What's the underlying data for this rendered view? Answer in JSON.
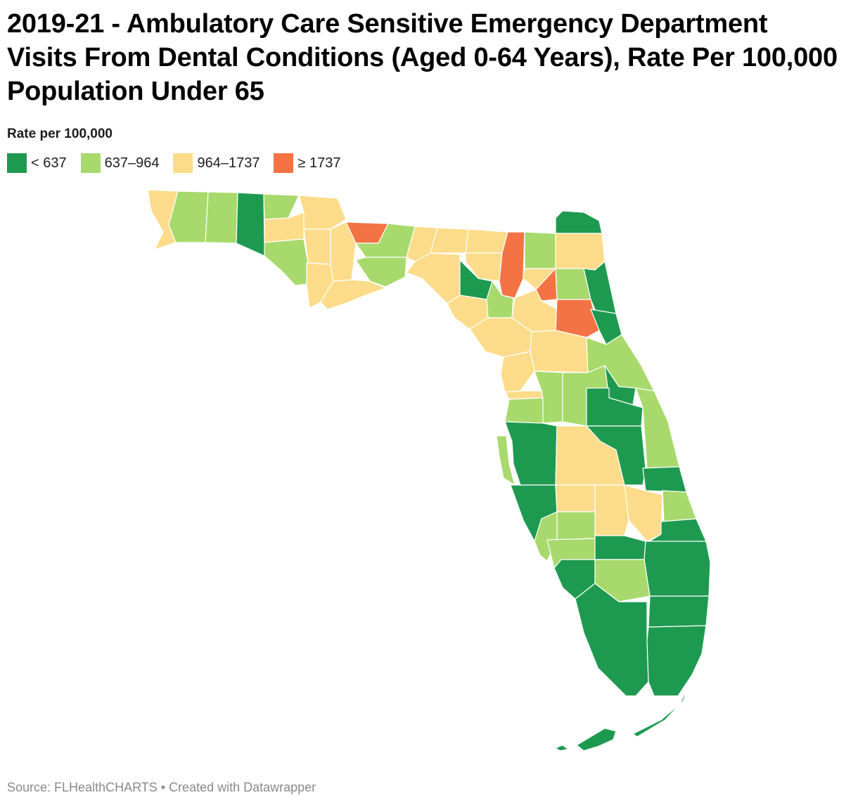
{
  "title": "2019-21 - Ambulatory Care Sensitive Emergency Department Visits From Dental Conditions (Aged 0-64 Years), Rate Per 100,000 Population Under 65",
  "legend": {
    "title": "Rate per 100,000",
    "bins": [
      {
        "label": "< 637",
        "color": "#1e9a50"
      },
      {
        "label": "637–964",
        "color": "#a8d96c"
      },
      {
        "label": "964–1737",
        "color": "#fcdc8a"
      },
      {
        "label": "≥ 1737",
        "color": "#f47344"
      }
    ]
  },
  "footer": {
    "source": "Source: FLHealthCHARTS",
    "separator": "•",
    "credit": "Created with Datawrapper"
  }
}
